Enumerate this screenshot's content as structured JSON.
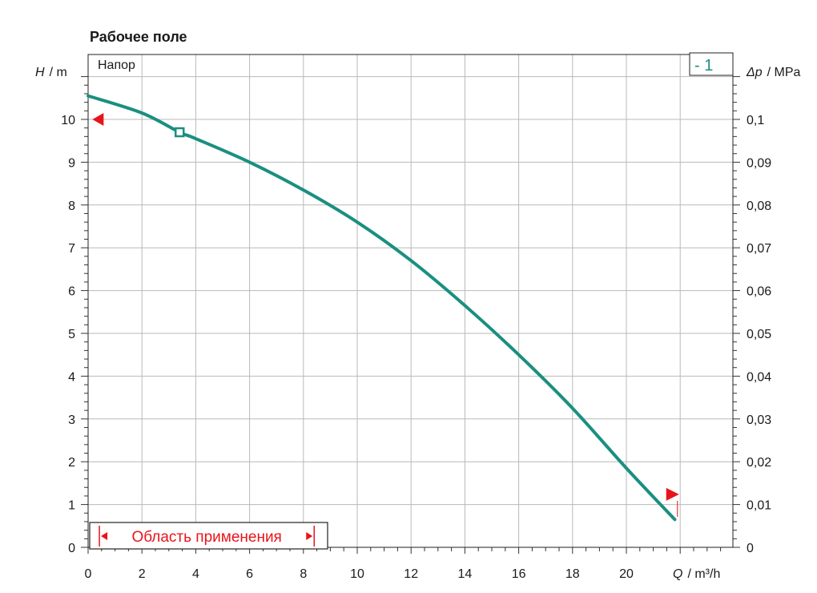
{
  "chart_data": {
    "type": "line",
    "title": "Рабочее поле",
    "curve_label": "Напор",
    "legend_label": "- 1",
    "band_label": "Область применения",
    "xlabel": {
      "symbol": "Q",
      "unit": "/ m³/h"
    },
    "ylabel": {
      "symbol": "H",
      "unit": "/ m"
    },
    "y2label": {
      "symbol": "Δp",
      "unit": "/ MPa"
    },
    "xlim": [
      0,
      24
    ],
    "ylim": [
      0,
      11
    ],
    "y2lim": [
      0,
      0.11
    ],
    "x_ticks": [
      "0",
      "2",
      "4",
      "6",
      "8",
      "10",
      "12",
      "14",
      "16",
      "18",
      "20"
    ],
    "y_ticks": [
      "0",
      "1",
      "2",
      "3",
      "4",
      "5",
      "6",
      "7",
      "8",
      "9",
      "10"
    ],
    "y2_ticks": [
      "0",
      "0,01",
      "0,02",
      "0,03",
      "0,04",
      "0,05",
      "0,06",
      "0,07",
      "0,08",
      "0,09",
      "0,1"
    ],
    "grid": true,
    "colors": {
      "curve": "#1a8f80",
      "marker": "#e8141b",
      "text": "#1a1a1a"
    },
    "series": [
      {
        "name": "1",
        "x": [
          0,
          2,
          3.4,
          4,
          6,
          8,
          10,
          12,
          14,
          16,
          18,
          20,
          21.8
        ],
        "y": [
          10.55,
          10.15,
          9.7,
          9.55,
          9.0,
          8.35,
          7.6,
          6.7,
          5.65,
          4.5,
          3.25,
          1.85,
          0.65
        ]
      }
    ],
    "operating_point": {
      "x": 3.4,
      "y": 9.7
    },
    "limit_markers": [
      {
        "x": 0.1,
        "y": 10.0,
        "direction": "left"
      },
      {
        "x": 21.6,
        "y": 1.2,
        "direction": "right"
      }
    ],
    "application_range": {
      "from": 0.3,
      "to": 8.4
    }
  }
}
